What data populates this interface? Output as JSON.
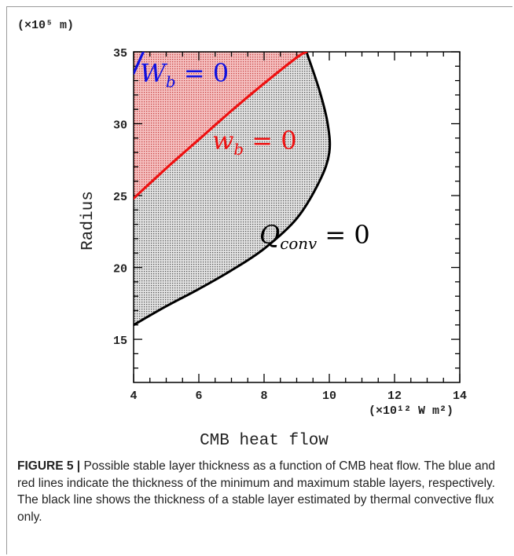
{
  "chart_data": {
    "type": "line",
    "x_unit_label": "(×10¹² W m²)",
    "y_unit_label": "(×10⁵ m)",
    "xlabel": "CMB heat flow",
    "ylabel": "Radius",
    "xlim": [
      4,
      14
    ],
    "ylim": [
      12,
      35
    ],
    "x_ticks": [
      4,
      6,
      8,
      10,
      12,
      14
    ],
    "y_ticks": [
      15,
      20,
      25,
      30,
      35
    ],
    "series": [
      {
        "name": "W_b = 0",
        "label_text": "W",
        "label_sub": "b",
        "label_rhs": " = 0",
        "color": "#1010e0",
        "points": [
          [
            4.0,
            33.5
          ],
          [
            4.3,
            35.0
          ]
        ]
      },
      {
        "name": "w_b = 0",
        "label_text": "w",
        "label_sub": "b",
        "label_rhs": " = 0",
        "color": "#ee1111",
        "points": [
          [
            4.0,
            24.8
          ],
          [
            5.0,
            26.9
          ],
          [
            6.0,
            28.9
          ],
          [
            7.0,
            30.9
          ],
          [
            8.0,
            32.8
          ],
          [
            9.0,
            34.6
          ],
          [
            9.3,
            35.0
          ]
        ]
      },
      {
        "name": "Q_conv = 0",
        "label_text": "Q",
        "label_sub": "conv",
        "label_rhs": " = 0",
        "color": "#000000",
        "points": [
          [
            4.0,
            16.0
          ],
          [
            5.0,
            17.3
          ],
          [
            6.0,
            18.5
          ],
          [
            7.0,
            19.8
          ],
          [
            8.0,
            21.3
          ],
          [
            9.0,
            23.4
          ],
          [
            9.7,
            26.0
          ],
          [
            10.0,
            28.0
          ],
          [
            9.95,
            30.0
          ],
          [
            9.7,
            32.3
          ],
          [
            9.3,
            35.0
          ]
        ]
      }
    ]
  },
  "caption": {
    "label": "FIGURE 5 |",
    "text": " Possible stable layer thickness as a function of CMB heat flow. The blue and red lines indicate the thickness of the minimum and maximum stable layers, respectively. The black line shows the thickness of a stable layer estimated by thermal convective flux only."
  },
  "colors": {
    "red_fill": "#ee9a9a",
    "gray_fill": "#c9c9c9"
  }
}
